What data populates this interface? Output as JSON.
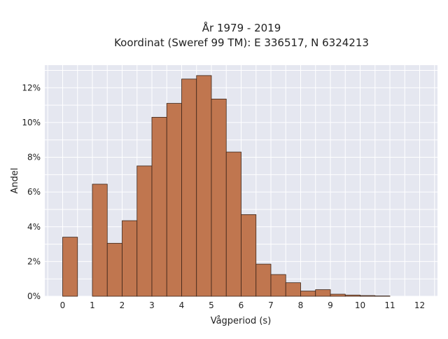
{
  "chart_data": {
    "type": "bar",
    "title": "År 1979 - 2019",
    "subtitle": "Koordinat (Sweref 99 TM): E 336517, N 6324213",
    "xlabel": "Vågperiod (s)",
    "ylabel": "Andel",
    "xlim": [
      -0.6,
      12.6
    ],
    "ylim": [
      0,
      13.3
    ],
    "x_ticks": [
      0,
      1,
      2,
      3,
      4,
      5,
      6,
      7,
      8,
      9,
      10,
      11,
      12
    ],
    "x_tick_labels": [
      "0",
      "1",
      "2",
      "3",
      "4",
      "5",
      "6",
      "7",
      "8",
      "9",
      "10",
      "11",
      "12"
    ],
    "y_ticks": [
      0,
      2,
      4,
      6,
      8,
      10,
      12
    ],
    "y_tick_labels": [
      "0%",
      "2%",
      "4%",
      "6%",
      "8%",
      "10%",
      "12%"
    ],
    "grid": true,
    "bar_width": 0.5,
    "bars": [
      {
        "x_start": 0.0,
        "value": 3.4
      },
      {
        "x_start": 1.0,
        "value": 6.45
      },
      {
        "x_start": 1.5,
        "value": 3.05
      },
      {
        "x_start": 2.0,
        "value": 4.35
      },
      {
        "x_start": 2.5,
        "value": 7.5
      },
      {
        "x_start": 3.0,
        "value": 10.3
      },
      {
        "x_start": 3.5,
        "value": 11.1
      },
      {
        "x_start": 4.0,
        "value": 12.5
      },
      {
        "x_start": 4.5,
        "value": 12.7
      },
      {
        "x_start": 5.0,
        "value": 11.35
      },
      {
        "x_start": 5.5,
        "value": 8.3
      },
      {
        "x_start": 6.0,
        "value": 4.7
      },
      {
        "x_start": 6.5,
        "value": 1.85
      },
      {
        "x_start": 7.0,
        "value": 1.25
      },
      {
        "x_start": 7.5,
        "value": 0.78
      },
      {
        "x_start": 8.0,
        "value": 0.3
      },
      {
        "x_start": 8.5,
        "value": 0.38
      },
      {
        "x_start": 9.0,
        "value": 0.12
      },
      {
        "x_start": 9.5,
        "value": 0.07
      },
      {
        "x_start": 10.0,
        "value": 0.04
      },
      {
        "x_start": 10.5,
        "value": 0.02
      }
    ],
    "colors": {
      "bar_fill": "#c0764f",
      "bar_edge": "#3a2418",
      "plot_background": "#e5e7f0",
      "grid": "#ffffff"
    }
  }
}
